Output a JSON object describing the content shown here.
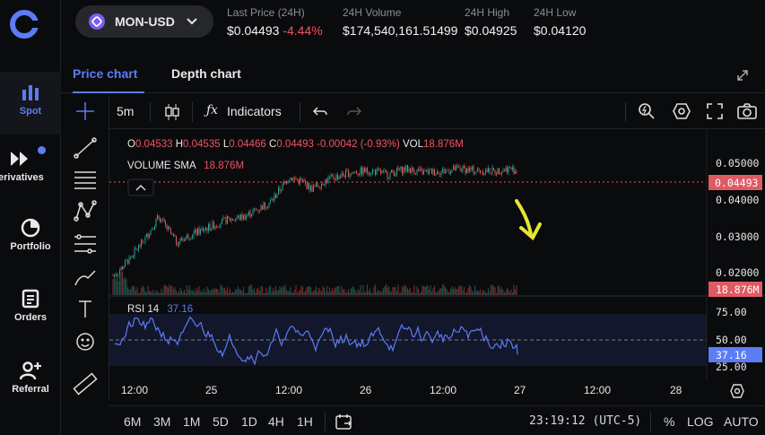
{
  "sidebar": {
    "items": [
      {
        "label": "Spot"
      },
      {
        "label": "erivatives"
      },
      {
        "label": "Portfolio"
      },
      {
        "label": "Orders"
      },
      {
        "label": "Referral"
      }
    ]
  },
  "header": {
    "pair": "MON-USD",
    "last_price_label": "Last Price (24H)",
    "last_price": "$0.04493",
    "change": "-4.44%",
    "volume_label": "24H Volume",
    "volume": "$174,540,161.51499",
    "high_label": "24H High",
    "high": "$0.04925",
    "low_label": "24H Low",
    "low": "$0.04120"
  },
  "tabs": [
    {
      "label": "Price chart"
    },
    {
      "label": "Depth chart"
    }
  ],
  "toolbar": {
    "interval": "5m",
    "indicators": "Indicators"
  },
  "ohlc": {
    "o_lbl": "O",
    "o": "0.04533",
    "h_lbl": "H",
    "h": "0.04535",
    "l_lbl": "L",
    "l": "0.04466",
    "c_lbl": "C",
    "c": "0.04493",
    "chg": "-0.00042 (-0.93%)",
    "vol_lbl": "VOL",
    "vol": "18.876M"
  },
  "volume_sma": {
    "label": "VOLUME SMA",
    "value": "18.876M"
  },
  "rsi": {
    "label": "RSI 14",
    "value": "37.16"
  },
  "price_axis": {
    "ticks": [
      "0.05000",
      "0.04000",
      "0.03000",
      "0.02000"
    ],
    "current": "0.04493",
    "volume_tag": "18.876M"
  },
  "rsi_axis": {
    "ticks": [
      "75.00",
      "50.00",
      "25.00"
    ],
    "current": "37.16"
  },
  "time_axis": {
    "ticks": [
      "12:00",
      "25",
      "12:00",
      "26",
      "12:00",
      "27",
      "12:00",
      "28"
    ]
  },
  "bottombar": {
    "ranges": [
      "6M",
      "3M",
      "1M",
      "5D",
      "1D",
      "4H",
      "1H"
    ],
    "clock": "23:19:12 (UTC-5)",
    "percent": "%",
    "log": "LOG",
    "auto": "AUTO"
  },
  "colors": {
    "accent": "#5b7cf5",
    "up": "#26a69a",
    "down": "#ef5350",
    "rsi": "#5b7cf5",
    "arrow": "#e6e632"
  }
}
